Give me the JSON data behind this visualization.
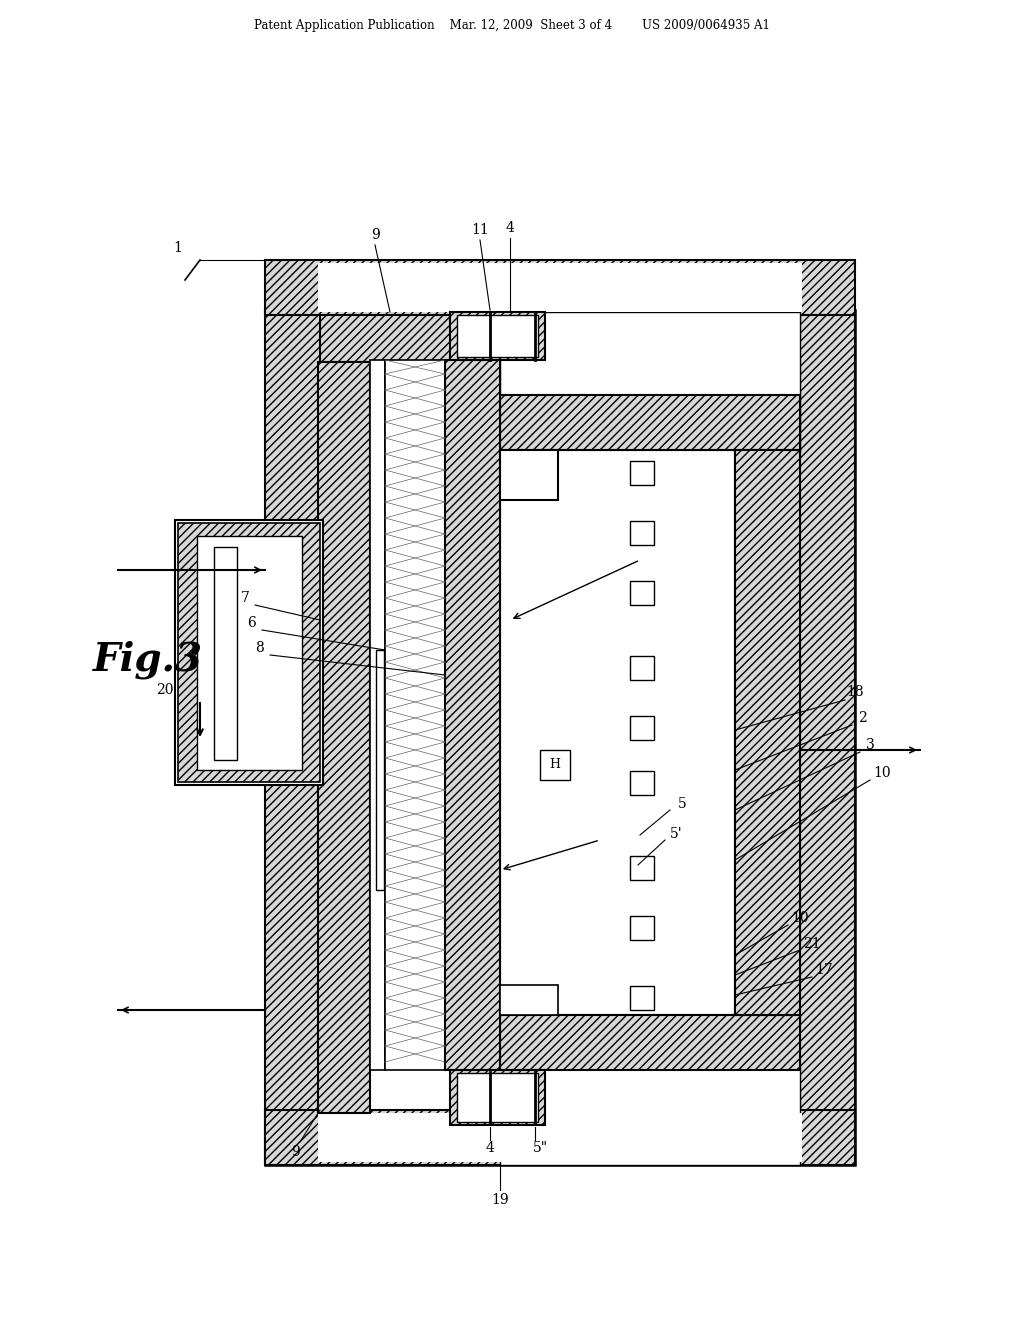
{
  "bg_color": "#ffffff",
  "header": "Patent Application Publication    Mar. 12, 2009  Sheet 3 of 4        US 2009/0064935 A1",
  "fig_label": "Fig.3",
  "hatch_fc": "#d8d8d8",
  "white": "#ffffff",
  "black": "#000000"
}
